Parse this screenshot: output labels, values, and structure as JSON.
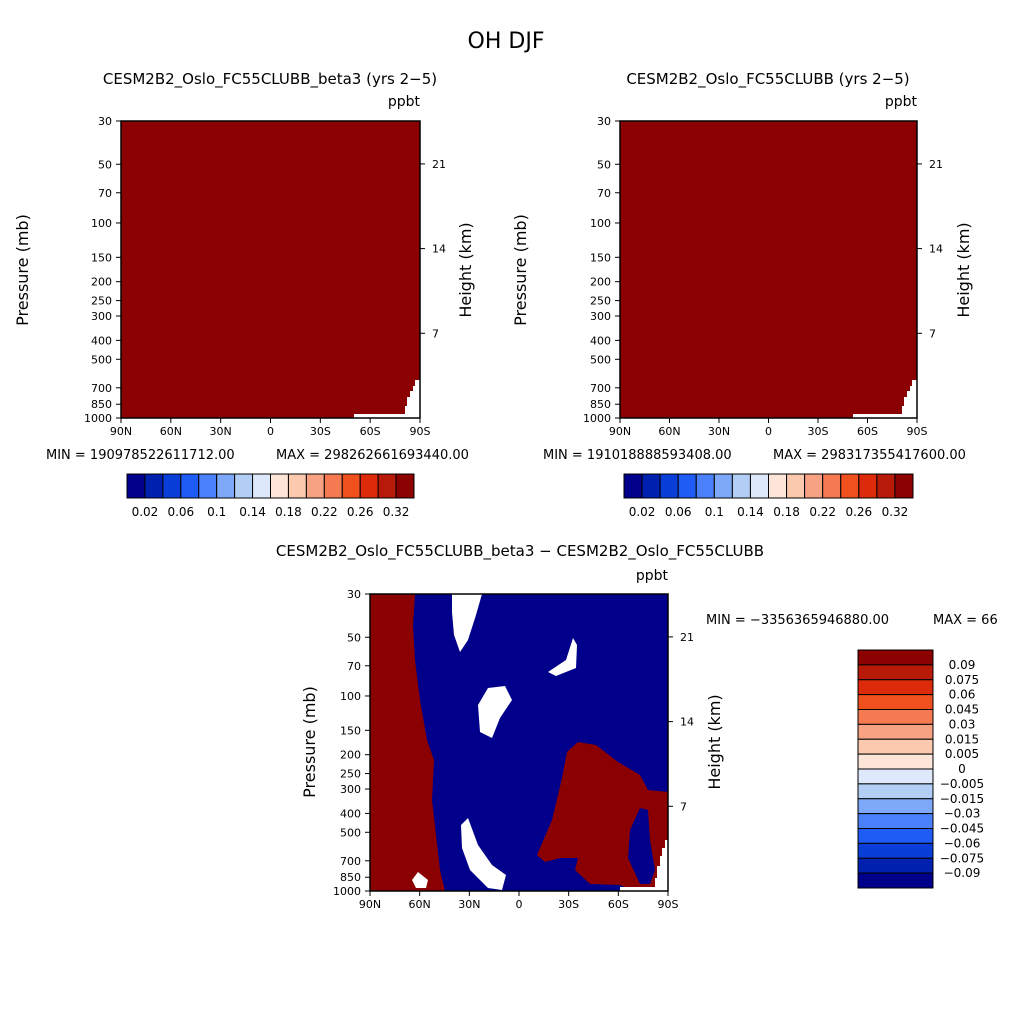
{
  "main_title": "OH DJF",
  "unit": "ppbt",
  "panels": [
    {
      "title": "CESM2B2_Oslo_FC55CLUBB_beta3 (yrs 2−5)",
      "min_label": "MIN = 190978522611712.00",
      "max_label": "MAX = 298262661693440.00"
    },
    {
      "title": "CESM2B2_Oslo_FC55CLUBB (yrs 2−5)",
      "min_label": "MIN = 191018888593408.00",
      "max_label": "MAX = 298317355417600.00"
    }
  ],
  "diff_panel": {
    "title": "CESM2B2_Oslo_FC55CLUBB_beta3 − CESM2B2_Oslo_FC55CLUBB",
    "min_label": "MIN = −3356365946880.00",
    "max_label": "MAX = 66"
  },
  "axes": {
    "ylabel_left": "Pressure (mb)",
    "ylabel_right": "Height (km)",
    "x_ticks": [
      "90N",
      "60N",
      "30N",
      "0",
      "30S",
      "60S",
      "90S"
    ],
    "pressure_ticks": [
      "30",
      "50",
      "70",
      "100",
      "150",
      "200",
      "250",
      "300",
      "400",
      "500",
      "700",
      "850",
      "1000"
    ],
    "height_ticks": [
      "21",
      "14",
      "7"
    ]
  },
  "colorbar_top": {
    "labels": [
      "0.02",
      "0.06",
      "0.1",
      "0.14",
      "0.18",
      "0.22",
      "0.26",
      "0.32"
    ],
    "colors": [
      "#00008b",
      "#0020b0",
      "#0a3ed8",
      "#1e5cf5",
      "#4a80fa",
      "#7ea8f8",
      "#b2cef5",
      "#dde9fb",
      "#fde6d8",
      "#fbc9ae",
      "#f7a282",
      "#f57a52",
      "#f0501e",
      "#dd2a0a",
      "#b81a0a",
      "#8b0000"
    ]
  },
  "colorbar_diff": {
    "labels": [
      "0.09",
      "0.075",
      "0.06",
      "0.045",
      "0.03",
      "0.015",
      "0.005",
      "0",
      "−0.005",
      "−0.015",
      "−0.03",
      "−0.045",
      "−0.06",
      "−0.075",
      "−0.09"
    ],
    "colors": [
      "#8b0000",
      "#b81a0a",
      "#dd2a0a",
      "#f0501e",
      "#f57a52",
      "#f7a282",
      "#fbc9ae",
      "#fde6d8",
      "#dde9fb",
      "#b2cef5",
      "#7ea8f8",
      "#4a80fa",
      "#1e5cf5",
      "#0a3ed8",
      "#0020b0",
      "#00008b"
    ]
  },
  "chart_data": [
    {
      "type": "heatmap",
      "title": "CESM2B2_Oslo_FC55CLUBB_beta3 (yrs 2−5)",
      "xlabel": "",
      "ylabel": "Pressure (mb)",
      "x_range": [
        "90N",
        "90S"
      ],
      "ylim": [
        1000,
        30
      ],
      "min": 190978522611712.0,
      "max": 298262661693440.0,
      "units": "ppbt"
    },
    {
      "type": "heatmap",
      "title": "CESM2B2_Oslo_FC55CLUBB (yrs 2−5)",
      "xlabel": "",
      "ylabel": "Pressure (mb)",
      "x_range": [
        "90N",
        "90S"
      ],
      "ylim": [
        1000,
        30
      ],
      "min": 191018888593408.0,
      "max": 298317355417600.0,
      "units": "ppbt"
    },
    {
      "type": "heatmap",
      "title": "CESM2B2_Oslo_FC55CLUBB_beta3 − CESM2B2_Oslo_FC55CLUBB",
      "xlabel": "",
      "ylabel": "Pressure (mb)",
      "x_range": [
        "90N",
        "90S"
      ],
      "ylim": [
        1000,
        30
      ],
      "min": -3356365946880.0,
      "max_label": "66",
      "units": "ppbt"
    }
  ]
}
